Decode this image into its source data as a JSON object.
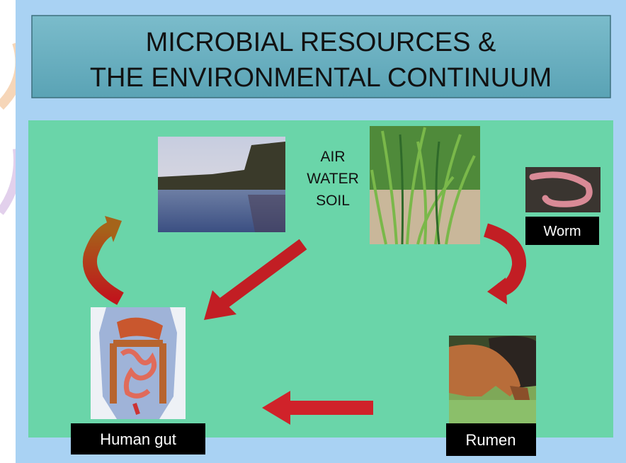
{
  "title": {
    "lines": [
      "MICROBIAL RESOURCES &",
      "THE ENVIRONMENTAL CONTINUUM"
    ]
  },
  "elements": [
    "AIR",
    "WATER",
    "SOIL"
  ],
  "labels": {
    "worm": "Worm",
    "rumen": "Rumen",
    "human_gut": "Human gut"
  }
}
